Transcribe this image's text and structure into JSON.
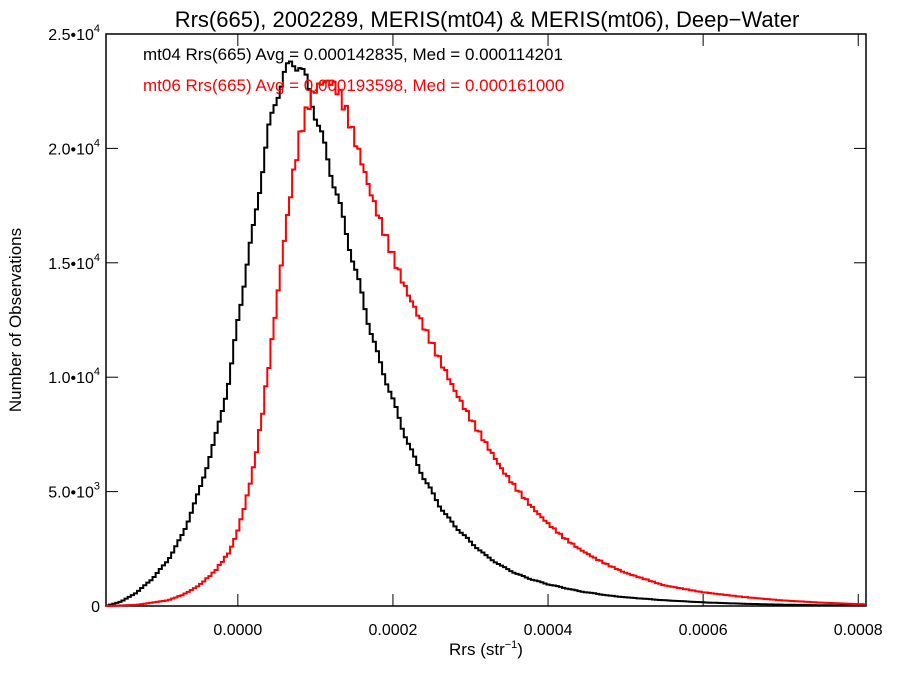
{
  "chart_data": {
    "type": "line",
    "title": "Rrs(665), 2002289, MERIS(mt04) & MERIS(mt06), Deep−Water",
    "xlabel_main": "Rrs (str",
    "xlabel_sup": "−1",
    "xlabel_close": ")",
    "ylabel": "Number of Observations",
    "xlim": [
      -0.00017,
      0.00081
    ],
    "ylim": [
      0,
      25000
    ],
    "x_ticks": [
      {
        "value": 0.0,
        "label": "0.0000"
      },
      {
        "value": 0.0002,
        "label": "0.0002"
      },
      {
        "value": 0.0004,
        "label": "0.0004"
      },
      {
        "value": 0.0006,
        "label": "0.0006"
      },
      {
        "value": 0.0008,
        "label": "0.0008"
      }
    ],
    "y_ticks": [
      {
        "value": 0,
        "mantissa": "0",
        "exp": ""
      },
      {
        "value": 5000,
        "mantissa": "5.0•10",
        "exp": "3"
      },
      {
        "value": 10000,
        "mantissa": "1.0•10",
        "exp": "4"
      },
      {
        "value": 15000,
        "mantissa": "1.5•10",
        "exp": "4"
      },
      {
        "value": 20000,
        "mantissa": "2.0•10",
        "exp": "4"
      },
      {
        "value": 25000,
        "mantissa": "2.5•10",
        "exp": "4"
      }
    ],
    "legend_placement": "top-left",
    "series": [
      {
        "name": "mt04 Rrs(665) Avg = 0.000142835, Med = 0.000114201",
        "color": "#000000",
        "step": "histogram",
        "x": [
          -0.00017,
          -0.00015,
          -0.00013,
          -0.00011,
          -9e-05,
          -7e-05,
          -5e-05,
          -3e-05,
          -1e-05,
          0.0,
          1e-05,
          2e-05,
          3e-05,
          4e-05,
          5e-05,
          6e-05,
          7e-05,
          8e-05,
          9e-05,
          0.0001,
          0.00011,
          0.00012,
          0.00013,
          0.00014,
          0.00015,
          0.00016,
          0.00017,
          0.00018,
          0.00019,
          0.0002,
          0.00021,
          0.00022,
          0.00023,
          0.00024,
          0.00025,
          0.00026,
          0.00027,
          0.00028,
          0.0003,
          0.00032,
          0.00034,
          0.00036,
          0.00038,
          0.0004,
          0.00042,
          0.00044,
          0.00046,
          0.00048,
          0.0005,
          0.00055,
          0.0006,
          0.00065,
          0.0007,
          0.00075,
          0.0008
        ],
        "y": [
          0,
          200,
          600,
          1200,
          2000,
          3200,
          5000,
          7200,
          10000,
          12500,
          14500,
          16500,
          18700,
          20800,
          22300,
          23200,
          23800,
          23600,
          22800,
          21500,
          20300,
          19000,
          17700,
          16300,
          14900,
          13600,
          12200,
          11000,
          10000,
          9000,
          8000,
          7100,
          6300,
          5600,
          5000,
          4400,
          3900,
          3500,
          2800,
          2200,
          1750,
          1400,
          1150,
          950,
          800,
          650,
          550,
          450,
          380,
          250,
          160,
          100,
          60,
          35,
          20
        ]
      },
      {
        "name": "mt06 Rrs(665) Avg = 0.000193598, Med = 0.000161000",
        "color": "#ff0000",
        "step": "histogram",
        "x": [
          -0.00017,
          -0.00013,
          -9e-05,
          -7e-05,
          -5e-05,
          -3e-05,
          -1e-05,
          0.0,
          1e-05,
          2e-05,
          3e-05,
          4e-05,
          5e-05,
          6e-05,
          7e-05,
          8e-05,
          9e-05,
          0.0001,
          0.00011,
          0.00012,
          0.00013,
          0.00014,
          0.00015,
          0.00016,
          0.00017,
          0.00018,
          0.00019,
          0.0002,
          0.00021,
          0.00022,
          0.00023,
          0.00024,
          0.00025,
          0.00026,
          0.00027,
          0.00028,
          0.0003,
          0.00032,
          0.00034,
          0.00036,
          0.00038,
          0.0004,
          0.00042,
          0.00044,
          0.00046,
          0.00048,
          0.0005,
          0.00055,
          0.0006,
          0.00065,
          0.0007,
          0.00075,
          0.0008
        ],
        "y": [
          0,
          50,
          250,
          500,
          900,
          1500,
          2400,
          3300,
          4500,
          6000,
          8000,
          10500,
          13200,
          16000,
          18500,
          20500,
          21800,
          22600,
          22900,
          22900,
          22500,
          21600,
          20500,
          19400,
          18200,
          17200,
          16200,
          15300,
          14400,
          13600,
          12900,
          12200,
          11500,
          10800,
          10100,
          9400,
          8200,
          7100,
          6000,
          5100,
          4300,
          3600,
          3000,
          2500,
          2100,
          1750,
          1450,
          900,
          600,
          400,
          250,
          150,
          80
        ]
      }
    ]
  }
}
